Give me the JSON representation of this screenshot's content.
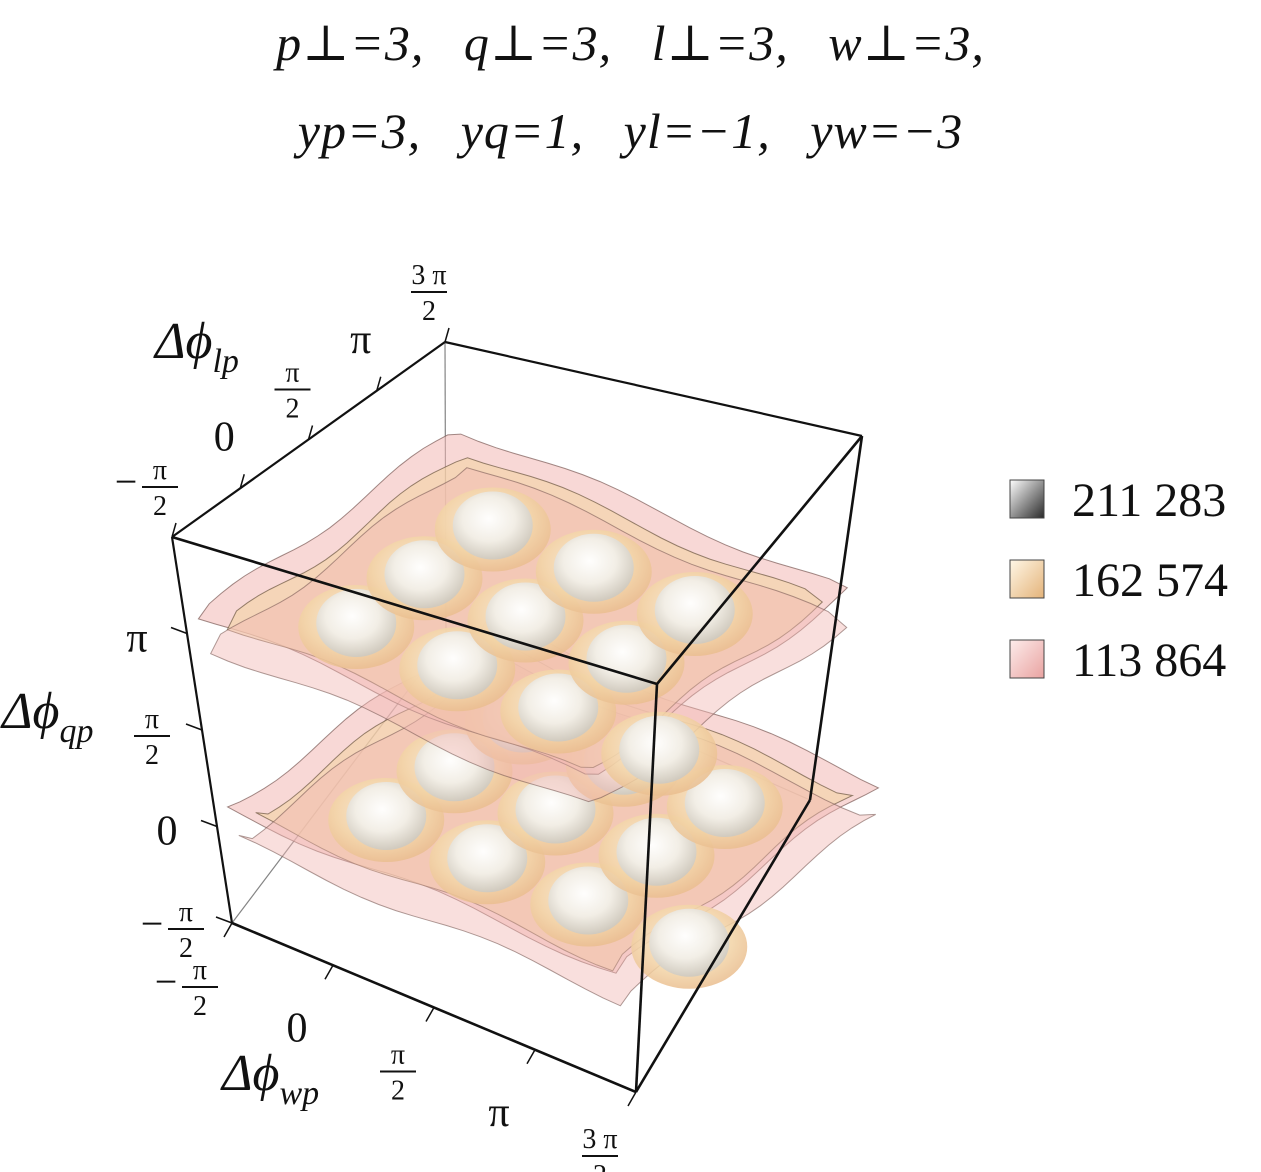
{
  "title": {
    "line1": [
      "p⊥=3,",
      "q⊥=3,",
      "l⊥=3,",
      "w⊥=3,"
    ],
    "line2": [
      "yp=3,",
      "yq=1,",
      "yl=−1,",
      "yw=−3"
    ]
  },
  "chart_data": {
    "type": "contour3d",
    "axes": {
      "x": {
        "label_base": "Δϕ",
        "label_sub": "wp",
        "ticks": [
          "−π/2",
          "0",
          "π/2",
          "π",
          "3π/2"
        ],
        "range": [
          -1.5708,
          4.7124
        ]
      },
      "y": {
        "label_base": "Δϕ",
        "label_sub": "lp",
        "ticks": [
          "−π/2",
          "0",
          "π/2",
          "π",
          "3π/2"
        ],
        "range": [
          -1.5708,
          4.7124
        ]
      },
      "z": {
        "label_base": "Δϕ",
        "label_sub": "qp",
        "ticks": [
          "−π/2",
          "0",
          "π/2",
          "π"
        ],
        "range": [
          -1.5708,
          4.7124
        ]
      }
    },
    "contour_levels": [
      {
        "value": "211 283",
        "color": "#f5f2ec"
      },
      {
        "value": "162 574",
        "color": "#f3d3a4"
      },
      {
        "value": "113 864",
        "color": "#f2b8b4"
      }
    ],
    "layers_z": [
      0,
      3.1416
    ],
    "peaks_per_layer": [
      [
        0,
        0
      ],
      [
        1.5708,
        0
      ],
      [
        3.1416,
        0
      ],
      [
        4.7124,
        0
      ],
      [
        0,
        1.5708
      ],
      [
        1.5708,
        1.5708
      ],
      [
        3.1416,
        1.5708
      ],
      [
        0,
        3.1416
      ],
      [
        1.5708,
        3.1416
      ],
      [
        3.1416,
        3.1416
      ]
    ],
    "legend_position": "right"
  }
}
